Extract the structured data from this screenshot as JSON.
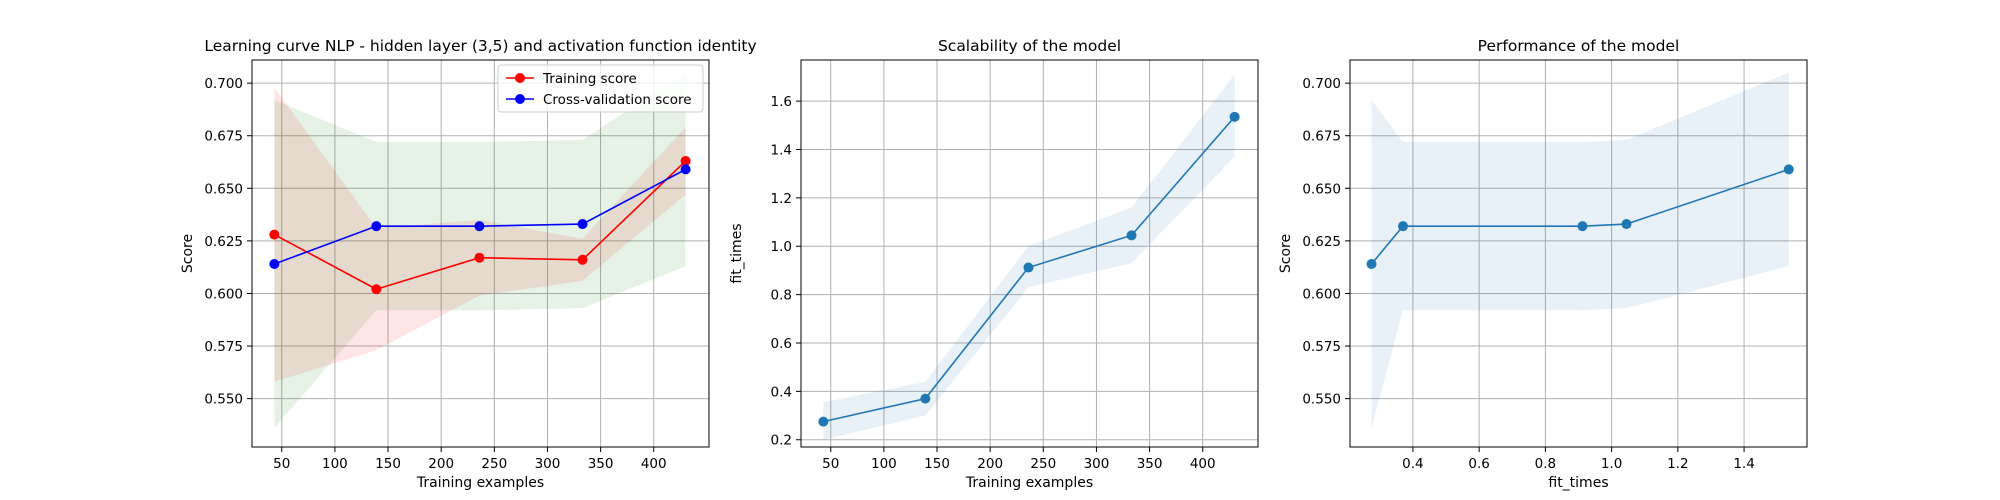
{
  "colors": {
    "train": "#ff0000",
    "cv": "#0000ff",
    "train_band": "#ff0000",
    "cv_band": "#008000",
    "blue": "#1f77b4",
    "grid": "#b0b0b0"
  },
  "chart_data": [
    {
      "type": "line",
      "title": "Learning curve NLP - hidden layer (3,5) and activation function identity",
      "xlabel": "Training examples",
      "ylabel": "Score",
      "xlim": [
        22,
        452
      ],
      "ylim": [
        0.527,
        0.711
      ],
      "xticks": [
        50,
        100,
        150,
        200,
        250,
        300,
        350,
        400
      ],
      "yticks": [
        0.55,
        0.575,
        0.6,
        0.625,
        0.65,
        0.675,
        0.7
      ],
      "ytick_labels": [
        "0.550",
        "0.575",
        "0.600",
        "0.625",
        "0.650",
        "0.675",
        "0.700"
      ],
      "grid": true,
      "legend": {
        "location": "upper right"
      },
      "x": [
        43,
        139,
        236,
        333,
        430
      ],
      "series": [
        {
          "name": "Training score",
          "color": "red",
          "values": [
            0.628,
            0.602,
            0.617,
            0.616,
            0.663
          ],
          "band_lower": [
            0.558,
            0.573,
            0.599,
            0.606,
            0.647
          ],
          "band_upper": [
            0.698,
            0.631,
            0.635,
            0.626,
            0.679
          ]
        },
        {
          "name": "Cross-validation score",
          "color": "blue",
          "values": [
            0.614,
            0.632,
            0.632,
            0.633,
            0.659
          ],
          "band_lower": [
            0.536,
            0.592,
            0.592,
            0.593,
            0.613
          ],
          "band_upper": [
            0.692,
            0.672,
            0.672,
            0.673,
            0.705
          ]
        }
      ]
    },
    {
      "type": "line",
      "title": "Scalability of the model",
      "xlabel": "Training examples",
      "ylabel": "fit_times",
      "xlim": [
        22,
        452
      ],
      "ylim": [
        0.17,
        1.77
      ],
      "xticks": [
        50,
        100,
        150,
        200,
        250,
        300,
        350,
        400
      ],
      "yticks": [
        0.2,
        0.4,
        0.6,
        0.8,
        1.0,
        1.2,
        1.4,
        1.6
      ],
      "ytick_labels": [
        "0.2",
        "0.4",
        "0.6",
        "0.8",
        "1.0",
        "1.2",
        "1.4",
        "1.6"
      ],
      "grid": true,
      "x": [
        43,
        139,
        236,
        333,
        430
      ],
      "series": [
        {
          "name": "fit_times",
          "color": "#1f77b4",
          "values": [
            0.275,
            0.37,
            0.912,
            1.045,
            1.535
          ],
          "band_lower": [
            0.2,
            0.3,
            0.83,
            0.93,
            1.37
          ],
          "band_upper": [
            0.355,
            0.44,
            1.0,
            1.16,
            1.71
          ]
        }
      ]
    },
    {
      "type": "line",
      "title": "Performance of the model",
      "xlabel": "fit_times",
      "ylabel": "Score",
      "xlim": [
        0.21,
        1.59
      ],
      "ylim": [
        0.527,
        0.711
      ],
      "xticks": [
        0.4,
        0.6,
        0.8,
        1.0,
        1.2,
        1.4
      ],
      "xtick_labels": [
        "0.4",
        "0.6",
        "0.8",
        "1.0",
        "1.2",
        "1.4"
      ],
      "yticks": [
        0.55,
        0.575,
        0.6,
        0.625,
        0.65,
        0.675,
        0.7
      ],
      "ytick_labels": [
        "0.550",
        "0.575",
        "0.600",
        "0.625",
        "0.650",
        "0.675",
        "0.700"
      ],
      "grid": true,
      "series": [
        {
          "name": "Score",
          "color": "#1f77b4",
          "x": [
            0.275,
            0.37,
            0.912,
            1.045,
            1.535
          ],
          "values": [
            0.614,
            0.632,
            0.632,
            0.633,
            0.659
          ],
          "band_lower": [
            0.536,
            0.592,
            0.592,
            0.593,
            0.613
          ],
          "band_upper": [
            0.692,
            0.672,
            0.672,
            0.673,
            0.705
          ]
        }
      ]
    }
  ]
}
